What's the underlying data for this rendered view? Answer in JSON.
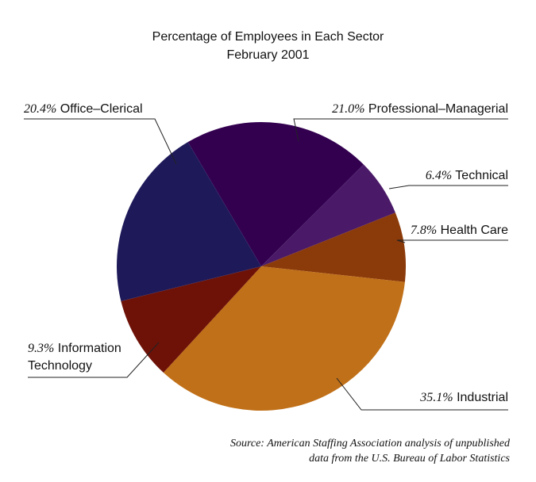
{
  "chart_data": {
    "type": "pie",
    "title": "Percentage of Employees in Each Sector",
    "subtitle": "February 2001",
    "categories": [
      "Professional–Managerial",
      "Technical",
      "Health Care",
      "Industrial",
      "Information Technology",
      "Office–Clerical"
    ],
    "values": [
      21.0,
      6.4,
      7.8,
      35.1,
      9.3,
      20.4
    ],
    "value_labels": [
      "21.0%",
      "6.4%",
      "7.8%",
      "35.1%",
      "9.3%",
      "20.4%"
    ],
    "colors": [
      "#330050",
      "#4a1a68",
      "#8b3a0a",
      "#c07018",
      "#6e1208",
      "#1e1a5a"
    ],
    "source": [
      "Source: American Staffing Association analysis of unpublished",
      "data from the U.S. Bureau of Labor Statistics"
    ]
  }
}
